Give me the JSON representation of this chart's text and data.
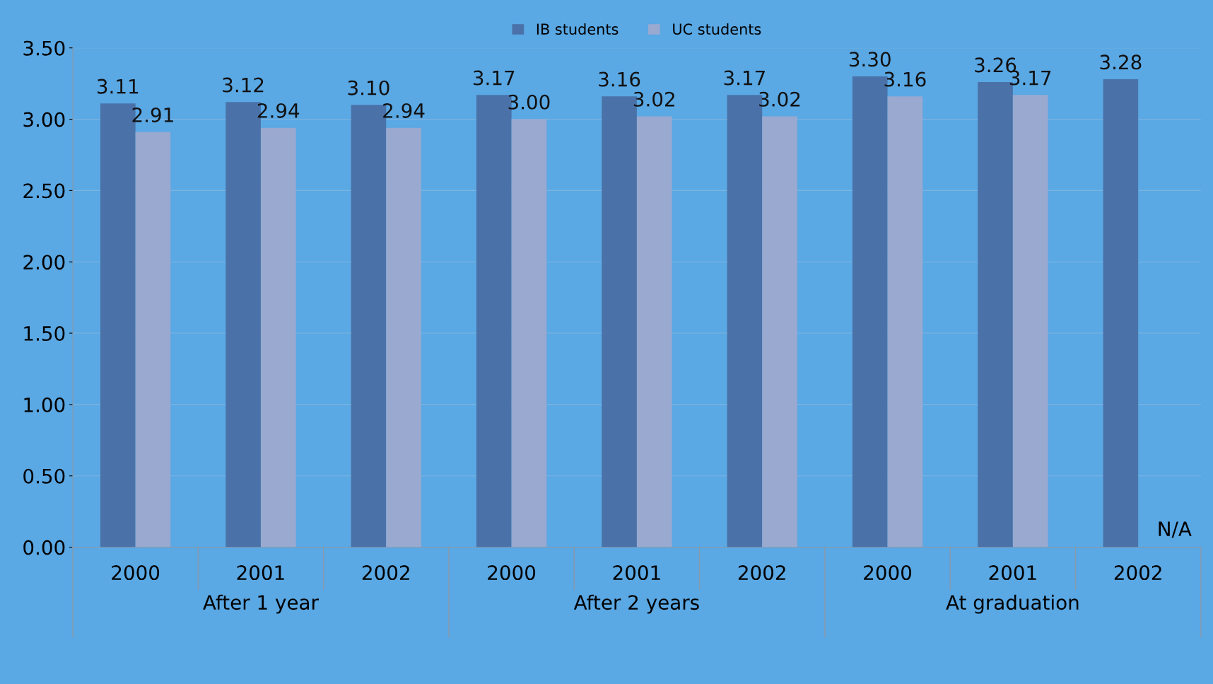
{
  "chart_data": {
    "type": "bar",
    "categories": [
      "2000",
      "2001",
      "2002",
      "2000",
      "2001",
      "2002",
      "2000",
      "2001",
      "2002"
    ],
    "series": [
      {
        "name": "IB students",
        "color": "#4a72a8",
        "values": [
          3.11,
          3.12,
          3.1,
          3.17,
          3.16,
          3.17,
          3.3,
          3.26,
          3.28
        ],
        "value_labels": [
          "3.11",
          "3.12",
          "3.10",
          "3.17",
          "3.16",
          "3.17",
          "3.30",
          "3.26",
          "3.28"
        ]
      },
      {
        "name": "UC students",
        "color": "#9aa9d0",
        "values": [
          2.91,
          2.94,
          2.94,
          3.0,
          3.02,
          3.02,
          3.16,
          3.17,
          null
        ],
        "value_labels": [
          "2.91",
          "2.94",
          "2.94",
          "3.00",
          "3.02",
          "3.02",
          "3.16",
          "3.17",
          null
        ]
      }
    ],
    "ylim": [
      0,
      3.5
    ],
    "yticks": [
      {
        "value": 0,
        "label": "0.00"
      },
      {
        "value": 0.5,
        "label": "0.50"
      },
      {
        "value": 1,
        "label": "1.00"
      },
      {
        "value": 1.5,
        "label": "1.50"
      },
      {
        "value": 2,
        "label": "2.00"
      },
      {
        "value": 2.5,
        "label": "2.50"
      },
      {
        "value": 3,
        "label": "3.00"
      },
      {
        "value": 3.5,
        "label": "3.50"
      }
    ],
    "grid": "y",
    "legend": "top",
    "annotations": [
      "N/A",
      "After 1 year",
      "After 2 years",
      "At graduation"
    ]
  }
}
